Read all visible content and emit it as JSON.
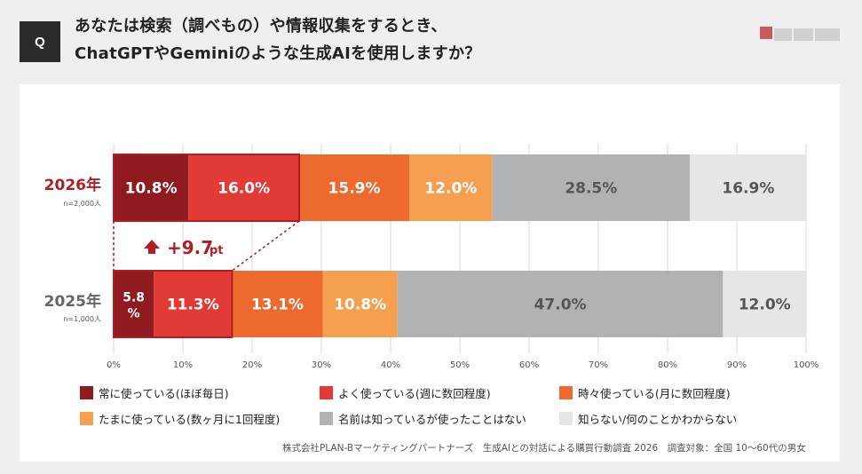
{
  "question": {
    "badge": "Q",
    "line1": "あなたは検索（調べもの）や情報収集をするとき、",
    "line2": "ChatGPTやGeminiのような生成AIを使用しますか？"
  },
  "chart_data": {
    "type": "bar",
    "orientation": "horizontal-stacked-100",
    "categories": [
      "2026年",
      "2025年"
    ],
    "category_notes": [
      "n=2,000人",
      "n=1,000人"
    ],
    "series": [
      {
        "name": "常に使っている(ほぼ毎日)",
        "color": "#8f1b20",
        "values": [
          10.8,
          5.8
        ],
        "labels": [
          "10.8%",
          "5.8\n%"
        ]
      },
      {
        "name": "よく使っている(週に数回程度)",
        "color": "#e23a36",
        "values": [
          16.0,
          11.3
        ],
        "labels": [
          "16.0%",
          "11.3%"
        ]
      },
      {
        "name": "時々使っている(月に数回程度)",
        "color": "#ed6a2e",
        "values": [
          15.9,
          13.1
        ],
        "labels": [
          "15.9%",
          "13.1%"
        ]
      },
      {
        "name": "たまに使っている(数ヶ月に1回程度)",
        "color": "#f4a050",
        "values": [
          12.0,
          10.8
        ],
        "labels": [
          "12.0%",
          "10.8%"
        ]
      },
      {
        "name": "名前は知っているが使ったことはない",
        "color": "#b1b2b4",
        "values": [
          28.5,
          47.0
        ],
        "labels": [
          "28.5%",
          "47.0%"
        ]
      },
      {
        "name": "知らない/何のことかわからない",
        "color": "#e6e6e8",
        "values": [
          16.9,
          12.0
        ],
        "labels": [
          "16.9%",
          "12.0%"
        ]
      }
    ],
    "xticks": [
      "0%",
      "10%",
      "20%",
      "30%",
      "40%",
      "50%",
      "60%",
      "70%",
      "80%",
      "90%",
      "100%"
    ],
    "xlim": [
      0,
      100
    ],
    "grid": true,
    "annotation": {
      "text": "+9.7",
      "unit": "pt",
      "icon": "up-arrow-icon"
    },
    "highlight_color": "#b01e24",
    "label_color_dark": "#555555"
  },
  "footer": {
    "source": "株式会社PLAN-Bマーケティングパートナーズ　生成AIとの対話による購買行動調査 2026　調査対象：全国 10〜60代の男女"
  }
}
